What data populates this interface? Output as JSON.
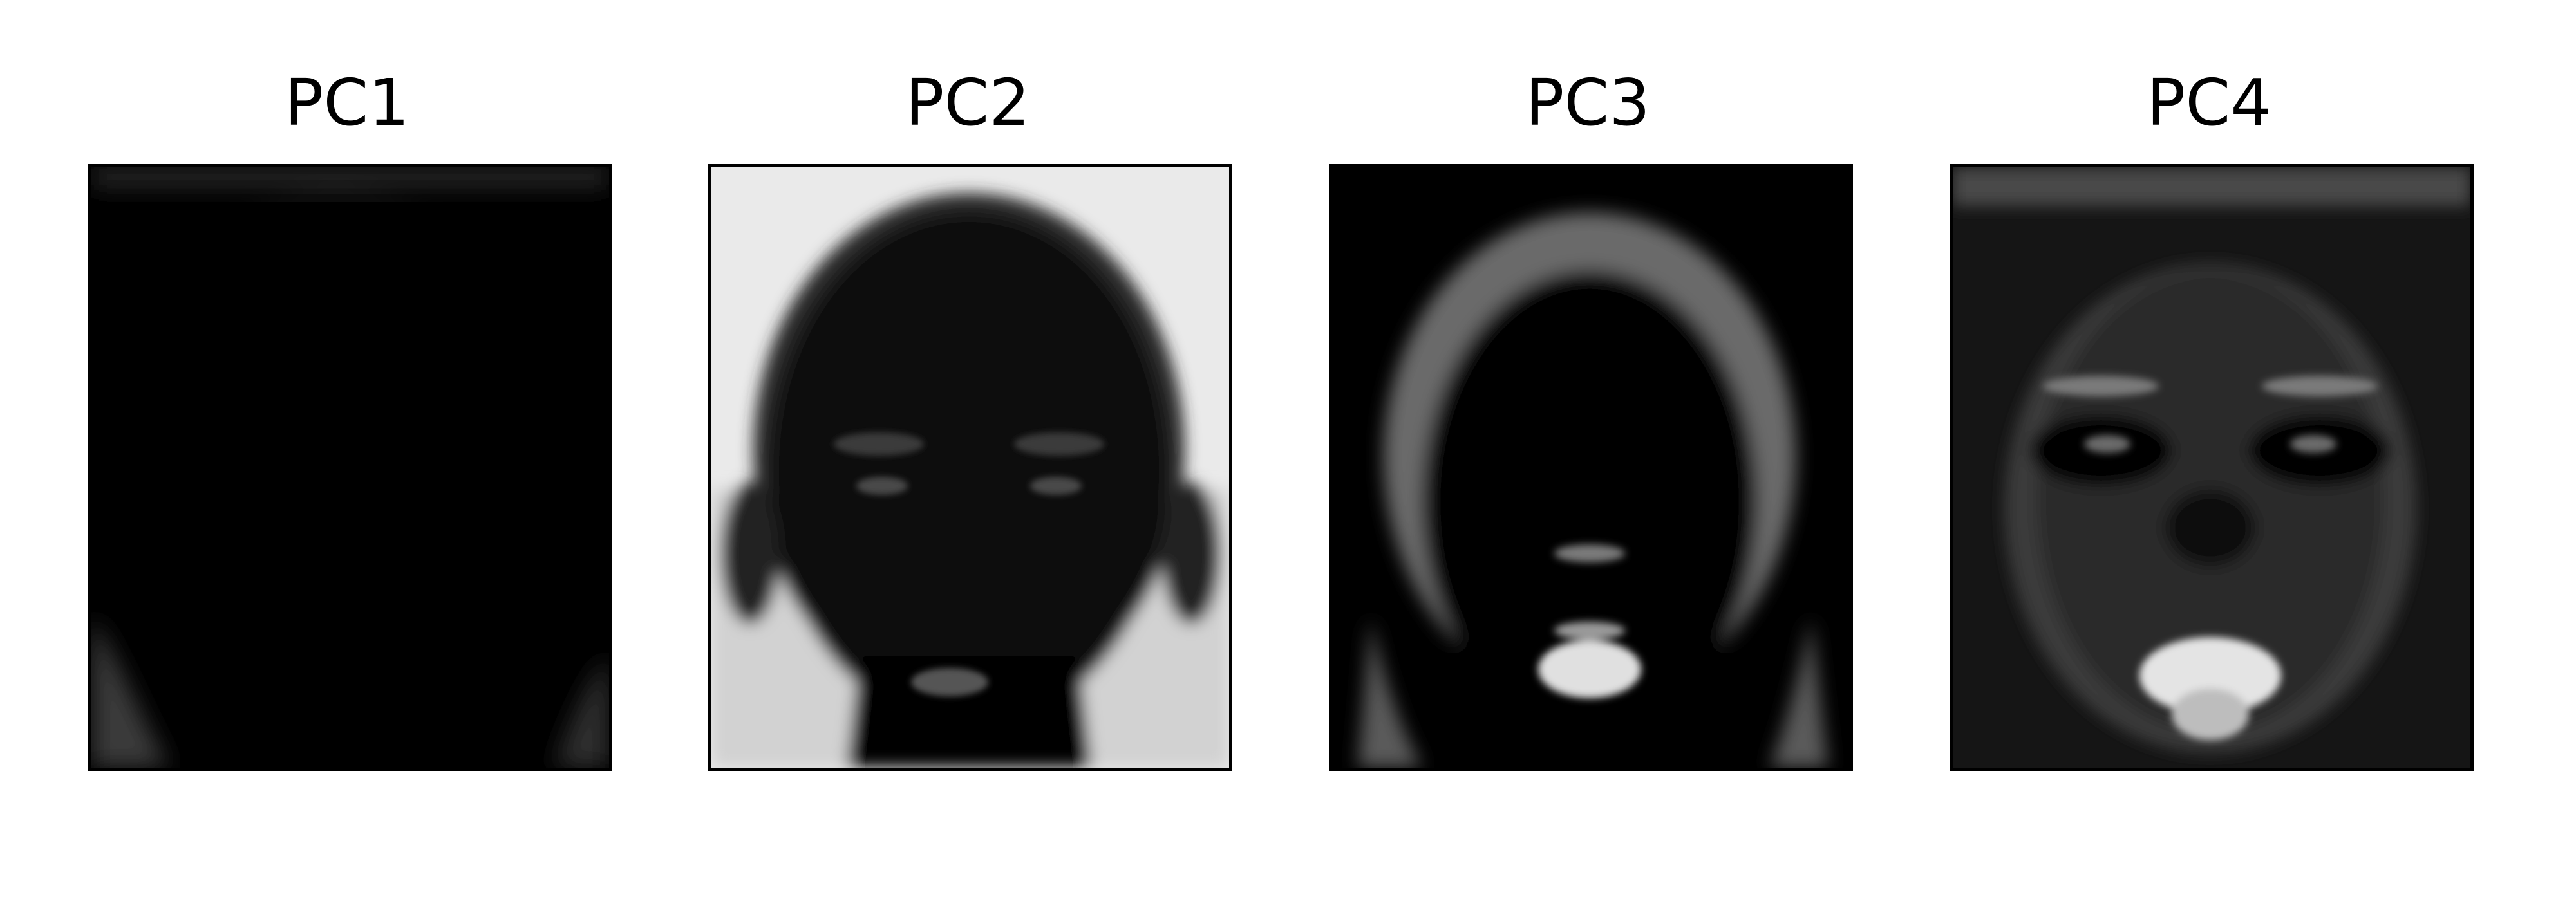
{
  "chart_data": {
    "type": "image_grid",
    "colormap": "gray",
    "panels": [
      {
        "title": "PC1",
        "depiction": "principal-component-face-mostly-dark"
      },
      {
        "title": "PC2",
        "depiction": "principal-component-face-bright-background"
      },
      {
        "title": "PC3",
        "depiction": "principal-component-face-bright-hairline-and-mouth"
      },
      {
        "title": "PC4",
        "depiction": "principal-component-face-bright-eyes-and-mouth"
      }
    ]
  }
}
